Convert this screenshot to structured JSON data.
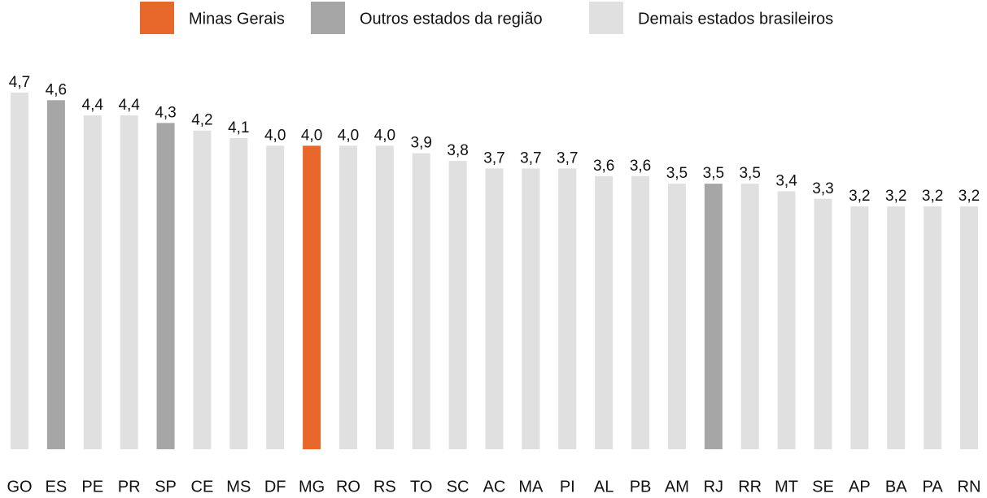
{
  "chart_data": {
    "type": "bar",
    "legend": [
      {
        "name": "Minas Gerais",
        "color": "#e8672a"
      },
      {
        "name": "Outros estados da região",
        "color": "#a6a6a6"
      },
      {
        "name": "Demais estados brasileiros",
        "color": "#e0e0e0"
      }
    ],
    "categories": [
      "GO",
      "ES",
      "PE",
      "PR",
      "SP",
      "CE",
      "MS",
      "DF",
      "MG",
      "RO",
      "RS",
      "TO",
      "SC",
      "AC",
      "MA",
      "PI",
      "AL",
      "PB",
      "AM",
      "RJ",
      "RR",
      "MT",
      "SE",
      "AP",
      "BA",
      "PA",
      "RN"
    ],
    "values": [
      4.7,
      4.6,
      4.4,
      4.4,
      4.3,
      4.2,
      4.1,
      4.0,
      4.0,
      4.0,
      4.0,
      3.9,
      3.8,
      3.7,
      3.7,
      3.7,
      3.6,
      3.6,
      3.5,
      3.5,
      3.5,
      3.4,
      3.3,
      3.2,
      3.2,
      3.2,
      3.2
    ],
    "value_labels": [
      "4,7",
      "4,6",
      "4,4",
      "4,4",
      "4,3",
      "4,2",
      "4,1",
      "4,0",
      "4,0",
      "4,0",
      "4,0",
      "3,9",
      "3,8",
      "3,7",
      "3,7",
      "3,7",
      "3,6",
      "3,6",
      "3,5",
      "3,5",
      "3,5",
      "3,4",
      "3,3",
      "3,2",
      "3,2",
      "3,2",
      "3,2"
    ],
    "colors": [
      "#e0e0e0",
      "#a6a6a6",
      "#e0e0e0",
      "#e0e0e0",
      "#a6a6a6",
      "#e0e0e0",
      "#e0e0e0",
      "#e0e0e0",
      "#e8672a",
      "#e0e0e0",
      "#e0e0e0",
      "#e0e0e0",
      "#e0e0e0",
      "#e0e0e0",
      "#e0e0e0",
      "#e0e0e0",
      "#e0e0e0",
      "#e0e0e0",
      "#e0e0e0",
      "#a6a6a6",
      "#e0e0e0",
      "#e0e0e0",
      "#e0e0e0",
      "#e0e0e0",
      "#e0e0e0",
      "#e0e0e0",
      "#e0e0e0"
    ]
  }
}
